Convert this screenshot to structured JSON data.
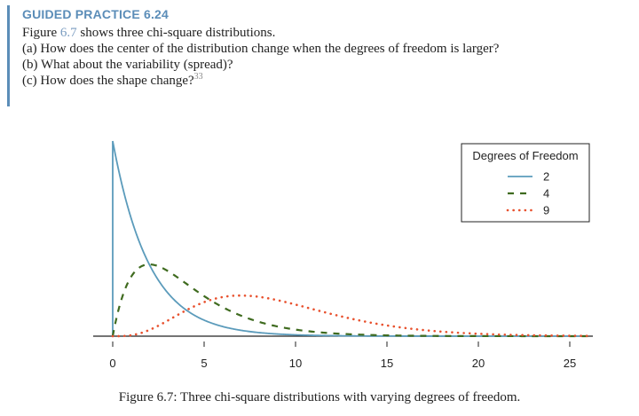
{
  "practice": {
    "title": "GUIDED PRACTICE 6.24",
    "line1_before": "Figure ",
    "line1_ref": "6.7",
    "line1_after": " shows three chi-square distributions.",
    "line2": "(a) How does the center of the distribution change when the degrees of freedom is larger?",
    "line3": "(b) What about the variability (spread)?",
    "line4": "(c) How does the shape change?",
    "footnote": "33"
  },
  "chart_data": {
    "type": "line",
    "title": "",
    "xlabel": "",
    "ylabel": "",
    "xlim": [
      0,
      26
    ],
    "x_ticks": [
      0,
      5,
      10,
      15,
      20,
      25
    ],
    "tick_labels": [
      "0",
      "5",
      "10",
      "15",
      "20",
      "25"
    ],
    "legend_title": "Degrees of Freedom",
    "legend_position": "top-right",
    "grid": false,
    "series": [
      {
        "name": "2",
        "df": 2,
        "style": "solid",
        "color": "#5b9bbb"
      },
      {
        "name": "4",
        "df": 4,
        "style": "dashed",
        "color": "#3f6b1f"
      },
      {
        "name": "9",
        "df": 9,
        "style": "dotted",
        "color": "#e8512e"
      }
    ]
  },
  "caption": "Figure 6.7: Three chi-square distributions with varying degrees of freedom."
}
